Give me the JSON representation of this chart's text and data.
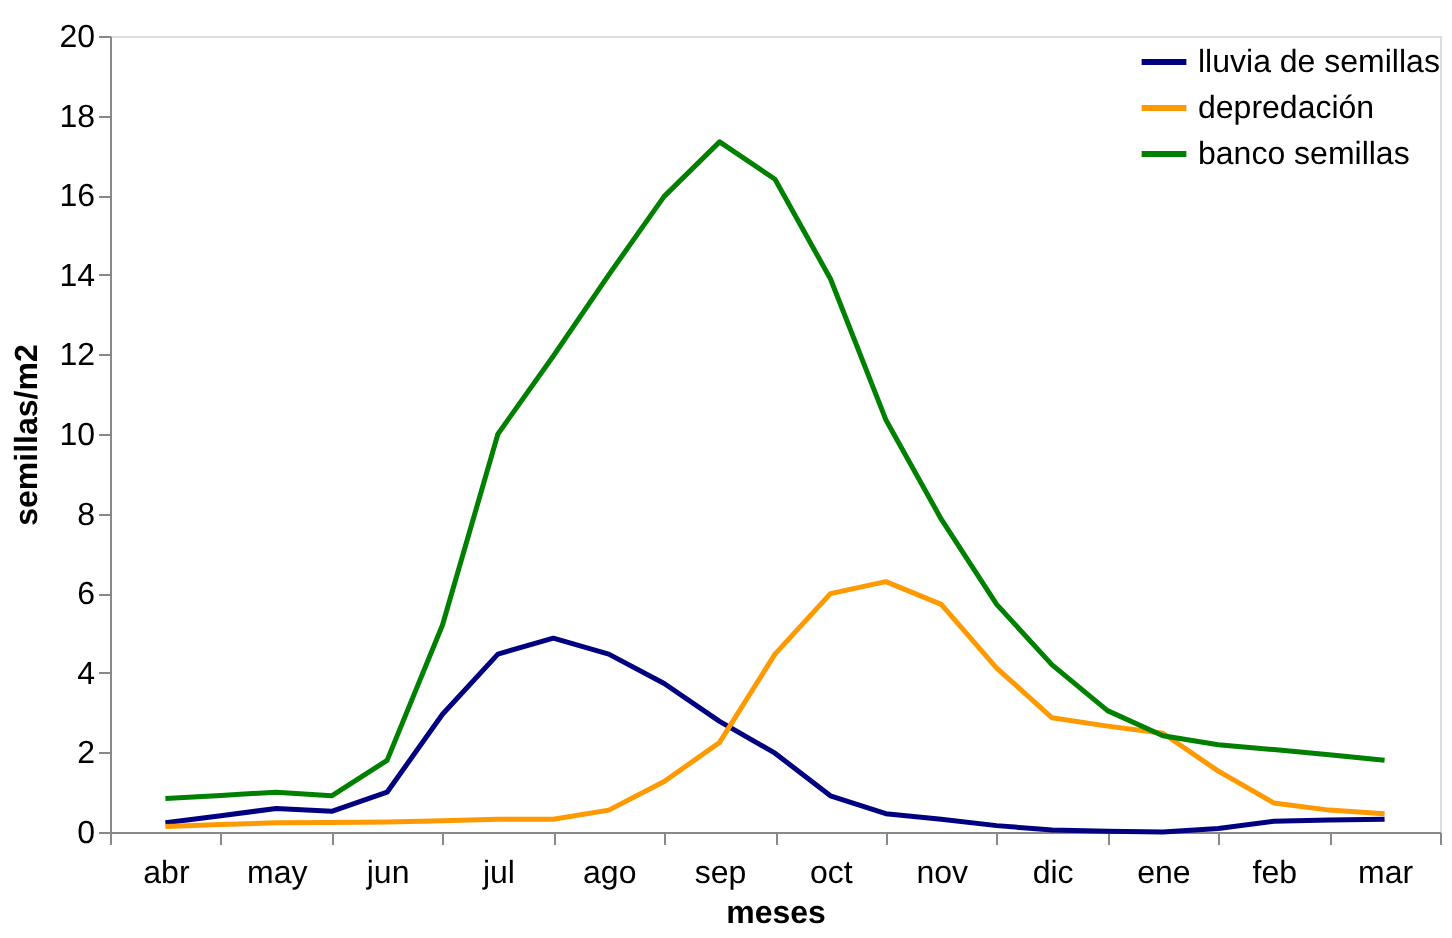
{
  "chart_data": {
    "type": "line",
    "xlabel": "meses",
    "ylabel": "semillas/m2",
    "categories": [
      null,
      "abr",
      null,
      "may",
      null,
      "jun",
      null,
      "jul",
      null,
      "ago",
      null,
      "sep",
      null,
      "oct",
      null,
      "nov",
      null,
      "dic",
      null,
      "ene",
      null,
      "feb",
      null,
      "mar",
      null
    ],
    "ylim": [
      0,
      20
    ],
    "yticks": [
      0,
      2,
      4,
      6,
      8,
      10,
      12,
      14,
      16,
      18,
      20
    ],
    "grid": false,
    "legend": "top right",
    "marker": "none",
    "line_style": "solid",
    "series": [
      {
        "name": "lluvia de semillas",
        "color": "#000080",
        "values": [
          null,
          0.23,
          0.41,
          0.59,
          0.52,
          1.0,
          2.96,
          4.47,
          4.87,
          4.47,
          3.73,
          2.78,
          1.98,
          0.91,
          0.46,
          0.32,
          0.16,
          0.05,
          0.02,
          0,
          0.09,
          0.27,
          0.3,
          0.32,
          null
        ]
      },
      {
        "name": "depredación",
        "color": "#ff9900",
        "values": [
          null,
          0.14,
          0.19,
          0.23,
          0.24,
          0.25,
          0.28,
          0.32,
          0.32,
          0.55,
          1.27,
          2.25,
          4.47,
          5.99,
          6.29,
          5.72,
          4.12,
          2.87,
          2.66,
          2.48,
          1.53,
          0.73,
          0.55,
          0.46,
          null
        ]
      },
      {
        "name": "banco semillas",
        "color": "#008000",
        "values": [
          null,
          0.84,
          0.92,
          1.0,
          0.91,
          1.8,
          5.2,
          10.0,
          11.96,
          14.0,
          15.97,
          17.34,
          16.4,
          13.9,
          10.36,
          7.86,
          5.72,
          4.2,
          3.05,
          2.42,
          2.19,
          2.07,
          1.94,
          1.8,
          null
        ]
      }
    ]
  }
}
